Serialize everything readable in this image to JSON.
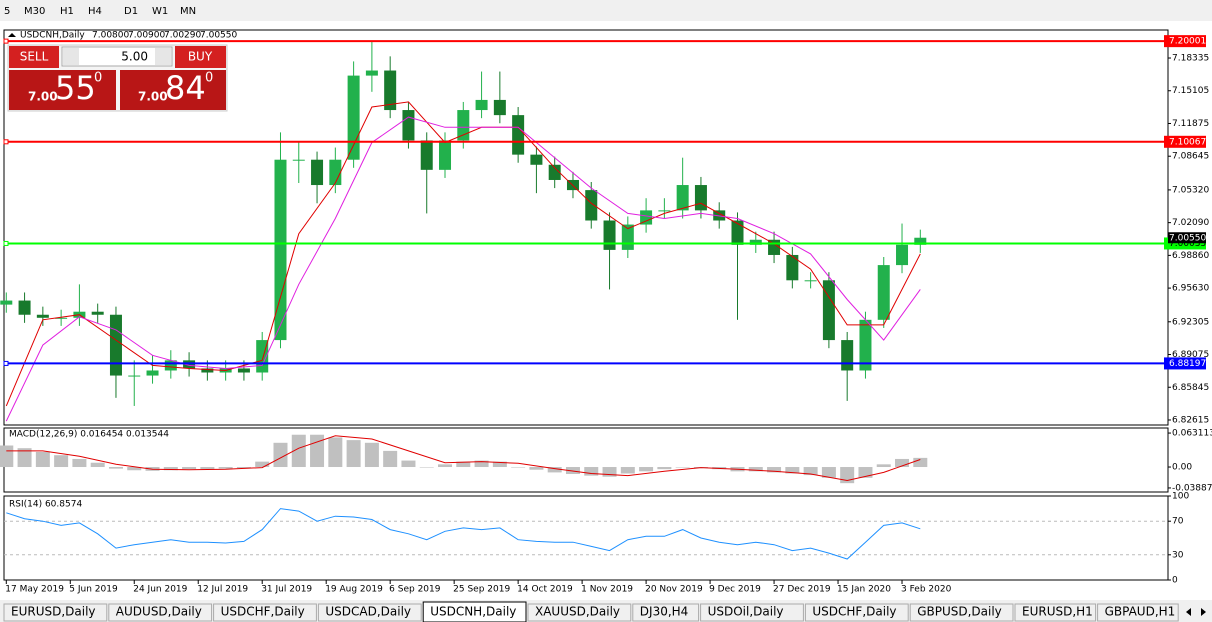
{
  "toolbar": {
    "items": [
      "5",
      "M30",
      "H1",
      "H4",
      "D1",
      "W1",
      "MN"
    ]
  },
  "header": {
    "symbol": "USDCNH,Daily",
    "ohlc": [
      "7.00800",
      "7.00900",
      "7.00290",
      "7.00550"
    ]
  },
  "trade_panel": {
    "sell": "SELL",
    "buy": "BUY",
    "lot": "5.00",
    "sell_price": {
      "big": "7.00",
      "pips": "55",
      "point": "0"
    },
    "buy_price": {
      "big": "7.00",
      "pips": "84",
      "point": "0"
    }
  },
  "chart_data": [
    {
      "type": "candlestick",
      "up_color": "#22b14c",
      "down_color": "#187a2c",
      "x": [
        0,
        4,
        8,
        12,
        16,
        20,
        24,
        28,
        32,
        36,
        40,
        44,
        48,
        52,
        56,
        60,
        64,
        68,
        72,
        76,
        80,
        84,
        88,
        92,
        96,
        100,
        104,
        108,
        112,
        116,
        120,
        124,
        128,
        132,
        136,
        140,
        144,
        148,
        152,
        156,
        160,
        164,
        168,
        172,
        176,
        180,
        184,
        188,
        192,
        196,
        200
      ],
      "open": [
        6.94,
        6.944,
        6.93,
        6.927,
        6.927,
        6.933,
        6.93,
        6.87,
        6.87,
        6.875,
        6.885,
        6.877,
        6.873,
        6.877,
        6.873,
        6.905,
        7.083,
        7.083,
        7.058,
        7.083,
        7.166,
        7.171,
        7.132,
        7.102,
        7.073,
        7.102,
        7.132,
        7.142,
        7.127,
        7.088,
        7.078,
        7.063,
        7.053,
        7.023,
        6.994,
        7.019,
        7.033,
        7.033,
        7.058,
        7.033,
        7.023,
        6.999,
        7.004,
        6.989,
        6.964,
        6.964,
        6.905,
        6.875,
        6.925,
        6.979,
        6.999
      ],
      "high": [
        6.952,
        6.952,
        6.938,
        6.935,
        6.96,
        6.941,
        6.938,
        6.885,
        6.89,
        6.895,
        6.893,
        6.885,
        6.885,
        6.885,
        6.913,
        7.11,
        7.1,
        7.091,
        7.095,
        7.18,
        7.2,
        7.185,
        7.14,
        7.11,
        7.11,
        7.14,
        7.17,
        7.17,
        7.135,
        7.096,
        7.086,
        7.071,
        7.061,
        7.031,
        7.027,
        7.045,
        7.045,
        7.085,
        7.066,
        7.041,
        7.031,
        7.012,
        7.012,
        6.997,
        6.972,
        6.972,
        6.913,
        6.933,
        6.987,
        7.02,
        7.014
      ],
      "low": [
        6.932,
        6.922,
        6.919,
        6.919,
        6.919,
        6.922,
        6.848,
        6.84,
        6.862,
        6.867,
        6.869,
        6.865,
        6.865,
        6.865,
        6.865,
        6.897,
        7.06,
        7.04,
        7.05,
        7.075,
        7.15,
        7.124,
        7.094,
        7.03,
        7.065,
        7.094,
        7.124,
        7.119,
        7.08,
        7.05,
        7.055,
        7.045,
        7.015,
        6.955,
        6.986,
        7.011,
        7.025,
        7.025,
        7.025,
        7.015,
        6.925,
        6.991,
        6.981,
        6.956,
        6.956,
        6.897,
        6.845,
        6.867,
        6.917,
        6.971,
        6.991
      ],
      "close": [
        6.944,
        6.93,
        6.927,
        6.927,
        6.933,
        6.93,
        6.87,
        6.87,
        6.875,
        6.885,
        6.877,
        6.873,
        6.877,
        6.873,
        6.905,
        7.083,
        7.083,
        7.058,
        7.083,
        7.166,
        7.171,
        7.132,
        7.102,
        7.073,
        7.102,
        7.132,
        7.142,
        7.127,
        7.088,
        7.078,
        7.063,
        7.053,
        7.023,
        6.994,
        7.019,
        7.033,
        7.033,
        7.058,
        7.033,
        7.023,
        6.999,
        7.004,
        6.989,
        6.964,
        6.964,
        6.905,
        6.875,
        6.925,
        6.979,
        6.999,
        7.006
      ],
      "lines": [
        {
          "color": "#e00000",
          "x": [
            0,
            8,
            16,
            24,
            32,
            40,
            48,
            56,
            64,
            72,
            80,
            88,
            96,
            104,
            112,
            120,
            128,
            136,
            144,
            152,
            160,
            168,
            176,
            184,
            192,
            200
          ],
          "values": [
            6.84,
            6.925,
            6.93,
            6.905,
            6.88,
            6.877,
            6.875,
            6.885,
            7.01,
            7.06,
            7.135,
            7.14,
            7.1,
            7.115,
            7.115,
            7.075,
            7.04,
            7.015,
            7.03,
            7.04,
            7.02,
            7.0,
            6.975,
            6.92,
            6.92,
            6.99
          ]
        },
        {
          "color": "#e020e0",
          "x": [
            0,
            8,
            16,
            24,
            32,
            40,
            48,
            56,
            64,
            72,
            80,
            88,
            96,
            104,
            112,
            120,
            128,
            136,
            144,
            152,
            160,
            168,
            176,
            184,
            192,
            200
          ],
          "values": [
            6.825,
            6.9,
            6.928,
            6.915,
            6.89,
            6.88,
            6.877,
            6.88,
            6.96,
            7.025,
            7.1,
            7.125,
            7.115,
            7.115,
            7.115,
            7.085,
            7.055,
            7.03,
            7.025,
            7.03,
            7.025,
            7.01,
            6.99,
            6.945,
            6.905,
            6.955
          ]
        }
      ],
      "hlines": [
        {
          "value": 7.20001,
          "color": "#ff0000"
        },
        {
          "value": 7.10067,
          "color": "#ff0000"
        },
        {
          "value": 7.00035,
          "color": "#00ff00"
        },
        {
          "value": 6.88197,
          "color": "#0000ff"
        }
      ],
      "last_price": {
        "value": 7.0055,
        "label": "7.00550"
      },
      "xlim": [
        -0.5,
        254.2
      ],
      "ylim": [
        6.8212,
        7.211
      ],
      "xticks": [
        {
          "value": 0,
          "label": "17 May 2019"
        },
        {
          "value": 14,
          "label": "5 Jun 2019"
        },
        {
          "value": 28,
          "label": "24 Jun 2019"
        },
        {
          "value": 42,
          "label": "12 Jul 2019"
        },
        {
          "value": 56,
          "label": "31 Jul 2019"
        },
        {
          "value": 70,
          "label": "19 Aug 2019"
        },
        {
          "value": 84,
          "label": "6 Sep 2019"
        },
        {
          "value": 98,
          "label": "25 Sep 2019"
        },
        {
          "value": 112,
          "label": "14 Oct 2019"
        },
        {
          "value": 126,
          "label": "1 Nov 2019"
        },
        {
          "value": 140,
          "label": "20 Nov 2019"
        },
        {
          "value": 154,
          "label": "9 Dec 2019"
        },
        {
          "value": 168,
          "label": "27 Dec 2019"
        },
        {
          "value": 182,
          "label": "15 Jan 2020"
        },
        {
          "value": 196,
          "label": "3 Feb 2020"
        }
      ],
      "yticks": [
        7.18335,
        7.15105,
        7.11875,
        7.08645,
        {
          "value": 7.0532,
          "label": "7.05320"
        },
        {
          "value": 7.0209,
          "label": "7.02090"
        },
        {
          "value": 6.9886,
          "label": "6.98860"
        },
        {
          "value": 6.9563,
          "label": "6.95630"
        },
        6.92305,
        6.89075,
        6.85845,
        6.82615
      ]
    },
    {
      "type": "macd",
      "title": "MACD(12,26,9) 0.016454 0.013544",
      "color": "#c0c0c0",
      "signal_color": "#e00000",
      "x": [
        0,
        4,
        8,
        12,
        16,
        20,
        24,
        28,
        32,
        36,
        40,
        44,
        48,
        52,
        56,
        60,
        64,
        68,
        72,
        76,
        80,
        84,
        88,
        92,
        96,
        100,
        104,
        108,
        112,
        116,
        120,
        124,
        128,
        132,
        136,
        140,
        144,
        148,
        152,
        156,
        160,
        164,
        168,
        172,
        176,
        180,
        184,
        188,
        192,
        196,
        200
      ],
      "values": [
        0.04,
        0.035,
        0.028,
        0.022,
        0.015,
        0.008,
        -0.003,
        -0.006,
        -0.007,
        -0.006,
        -0.004,
        -0.004,
        -0.003,
        -0.002,
        0.01,
        0.045,
        0.06,
        0.06,
        0.055,
        0.05,
        0.045,
        0.03,
        0.012,
        0.0,
        0.005,
        0.01,
        0.012,
        0.01,
        0.0,
        -0.005,
        -0.01,
        -0.013,
        -0.016,
        -0.018,
        -0.012,
        -0.008,
        -0.004,
        0.0,
        -0.002,
        -0.004,
        -0.008,
        -0.008,
        -0.01,
        -0.012,
        -0.015,
        -0.02,
        -0.03,
        -0.02,
        0.005,
        0.015,
        0.017
      ],
      "signal_x": [
        0,
        8,
        16,
        24,
        32,
        40,
        48,
        56,
        64,
        72,
        80,
        88,
        96,
        104,
        112,
        120,
        128,
        136,
        144,
        152,
        160,
        168,
        176,
        184,
        192,
        200
      ],
      "signal": [
        0.03,
        0.03,
        0.02,
        0.005,
        -0.004,
        -0.005,
        -0.004,
        -0.001,
        0.035,
        0.058,
        0.052,
        0.03,
        0.008,
        0.01,
        0.007,
        -0.003,
        -0.012,
        -0.016,
        -0.008,
        -0.001,
        -0.004,
        -0.008,
        -0.013,
        -0.025,
        -0.01,
        0.014
      ],
      "ylim": [
        -0.0464,
        0.0725
      ],
      "yticks": [
        0.063113,
        {
          "value": 0,
          "label": "0.00"
        },
        -0.038872
      ]
    },
    {
      "type": "rsi",
      "title": "RSI(14) 60.8574",
      "color": "#1e90ff",
      "x": [
        0,
        4,
        8,
        12,
        16,
        20,
        24,
        28,
        32,
        36,
        40,
        44,
        48,
        52,
        56,
        60,
        64,
        68,
        72,
        76,
        80,
        84,
        88,
        92,
        96,
        100,
        104,
        108,
        112,
        116,
        120,
        124,
        128,
        132,
        136,
        140,
        144,
        148,
        152,
        156,
        160,
        164,
        168,
        172,
        176,
        180,
        184,
        188,
        192,
        196,
        200
      ],
      "values": [
        80,
        73,
        70,
        65,
        68,
        55,
        38,
        42,
        45,
        48,
        45,
        45,
        44,
        46,
        60,
        85,
        82,
        70,
        76,
        75,
        72,
        60,
        55,
        48,
        58,
        62,
        60,
        62,
        48,
        46,
        45,
        45,
        40,
        35,
        48,
        52,
        52,
        60,
        50,
        45,
        42,
        45,
        42,
        35,
        38,
        32,
        25,
        45,
        65,
        68,
        61
      ],
      "levels": [
        70,
        30
      ],
      "ylim": [
        0,
        100
      ],
      "yticks": [
        100,
        70,
        30,
        0
      ]
    }
  ],
  "tabs": {
    "items": [
      "EURUSD,Daily",
      "AUDUSD,Daily",
      "USDCHF,Daily",
      "USDCAD,Daily",
      "USDCNH,Daily",
      "XAUUSD,Daily",
      "DJ30,H4",
      "USDOil,Daily",
      "USDCHF,Daily",
      "GBPUSD,Daily",
      "EURUSD,H1",
      "GBPAUD,H1"
    ],
    "active": 4
  }
}
